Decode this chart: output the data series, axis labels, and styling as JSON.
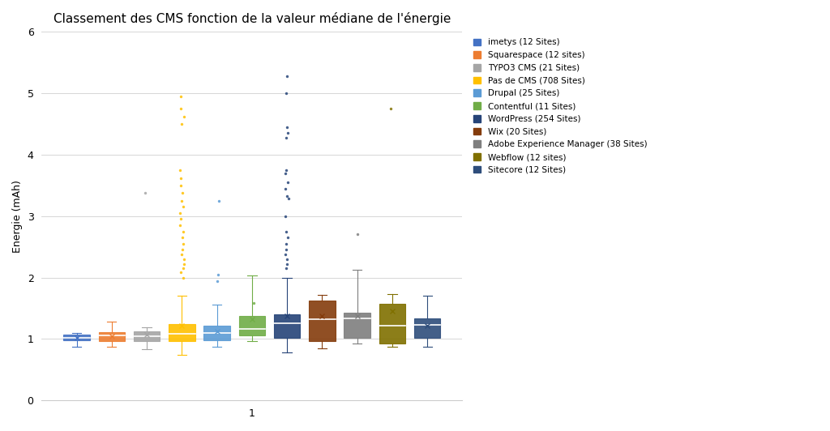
{
  "title": "Classement des CMS fonction de la valeur médiane de l'énergie",
  "ylabel": "Energie (mAh)",
  "xlabel": "1",
  "ylim": [
    0,
    6
  ],
  "yticks": [
    0,
    1,
    2,
    3,
    4,
    5,
    6
  ],
  "background_color": "#ffffff",
  "grid_color": "#d0d0d0",
  "cms_list": [
    "imetys (12 Sites)",
    "Squarespace (12 sites)",
    "TYPO3 CMS (21 Sites)",
    "Pas de CMS (708 Sites)",
    "Drupal (25 Sites)",
    "Contentful (11 Sites)",
    "WordPress (254 Sites)",
    "Wix (20 Sites)",
    "Adobe Experience Manager (38 Sites)",
    "Webflow (12 sites)",
    "Sitecore (12 Sites)"
  ],
  "colors": [
    "#4472c4",
    "#ed7d31",
    "#a5a5a5",
    "#ffc000",
    "#5b9bd5",
    "#70ad47",
    "#264478",
    "#843c0c",
    "#7f7f7f",
    "#807000",
    "#2e4d7b"
  ],
  "boxes": [
    {
      "q1": 0.975,
      "median": 1.02,
      "q3": 1.065,
      "whislo": 0.875,
      "whishi": 1.1,
      "fliers": [],
      "mean": 1.02
    },
    {
      "q1": 0.97,
      "median": 1.06,
      "q3": 1.115,
      "whislo": 0.87,
      "whishi": 1.28,
      "fliers": [],
      "mean": 1.05
    },
    {
      "q1": 0.97,
      "median": 1.05,
      "q3": 1.13,
      "whislo": 0.83,
      "whishi": 1.19,
      "fliers": [
        3.38
      ],
      "mean": 1.07
    },
    {
      "q1": 0.96,
      "median": 1.09,
      "q3": 1.24,
      "whislo": 0.74,
      "whishi": 1.7,
      "fliers": [
        2.0,
        2.08,
        2.15,
        2.22,
        2.3,
        2.38,
        2.45,
        2.55,
        2.65,
        2.75,
        2.85,
        2.95,
        3.05,
        3.15,
        3.25,
        3.38,
        3.5,
        3.62,
        3.75,
        4.5,
        4.62,
        4.75,
        4.95
      ],
      "mean": 1.22
    },
    {
      "q1": 0.98,
      "median": 1.1,
      "q3": 1.22,
      "whislo": 0.87,
      "whishi": 1.56,
      "fliers": [
        1.94,
        2.05,
        3.25
      ],
      "mean": 1.12
    },
    {
      "q1": 1.06,
      "median": 1.17,
      "q3": 1.37,
      "whislo": 0.97,
      "whishi": 2.04,
      "fliers": [
        1.58
      ],
      "mean": 1.32
    },
    {
      "q1": 1.02,
      "median": 1.25,
      "q3": 1.4,
      "whislo": 0.78,
      "whishi": 2.0,
      "fliers": [
        2.15,
        2.22,
        2.3,
        2.38,
        2.45,
        2.55,
        2.65,
        2.75,
        3.0,
        3.28,
        3.32,
        3.45,
        3.55,
        3.7,
        3.75,
        4.27,
        4.35,
        4.45,
        5.0,
        5.27
      ],
      "mean": 1.38
    },
    {
      "q1": 0.96,
      "median": 1.32,
      "q3": 1.63,
      "whislo": 0.85,
      "whishi": 1.72,
      "fliers": [],
      "mean": 1.38
    },
    {
      "q1": 1.02,
      "median": 1.33,
      "q3": 1.43,
      "whislo": 0.93,
      "whishi": 2.13,
      "fliers": [
        2.7
      ],
      "mean": 1.38
    },
    {
      "q1": 0.93,
      "median": 1.22,
      "q3": 1.57,
      "whislo": 0.87,
      "whishi": 1.73,
      "fliers": [
        4.75
      ],
      "mean": 1.45
    },
    {
      "q1": 1.02,
      "median": 1.23,
      "q3": 1.34,
      "whislo": 0.87,
      "whishi": 1.7,
      "fliers": [],
      "mean": 1.22
    }
  ],
  "figsize": [
    10.24,
    5.32
  ],
  "dpi": 100
}
